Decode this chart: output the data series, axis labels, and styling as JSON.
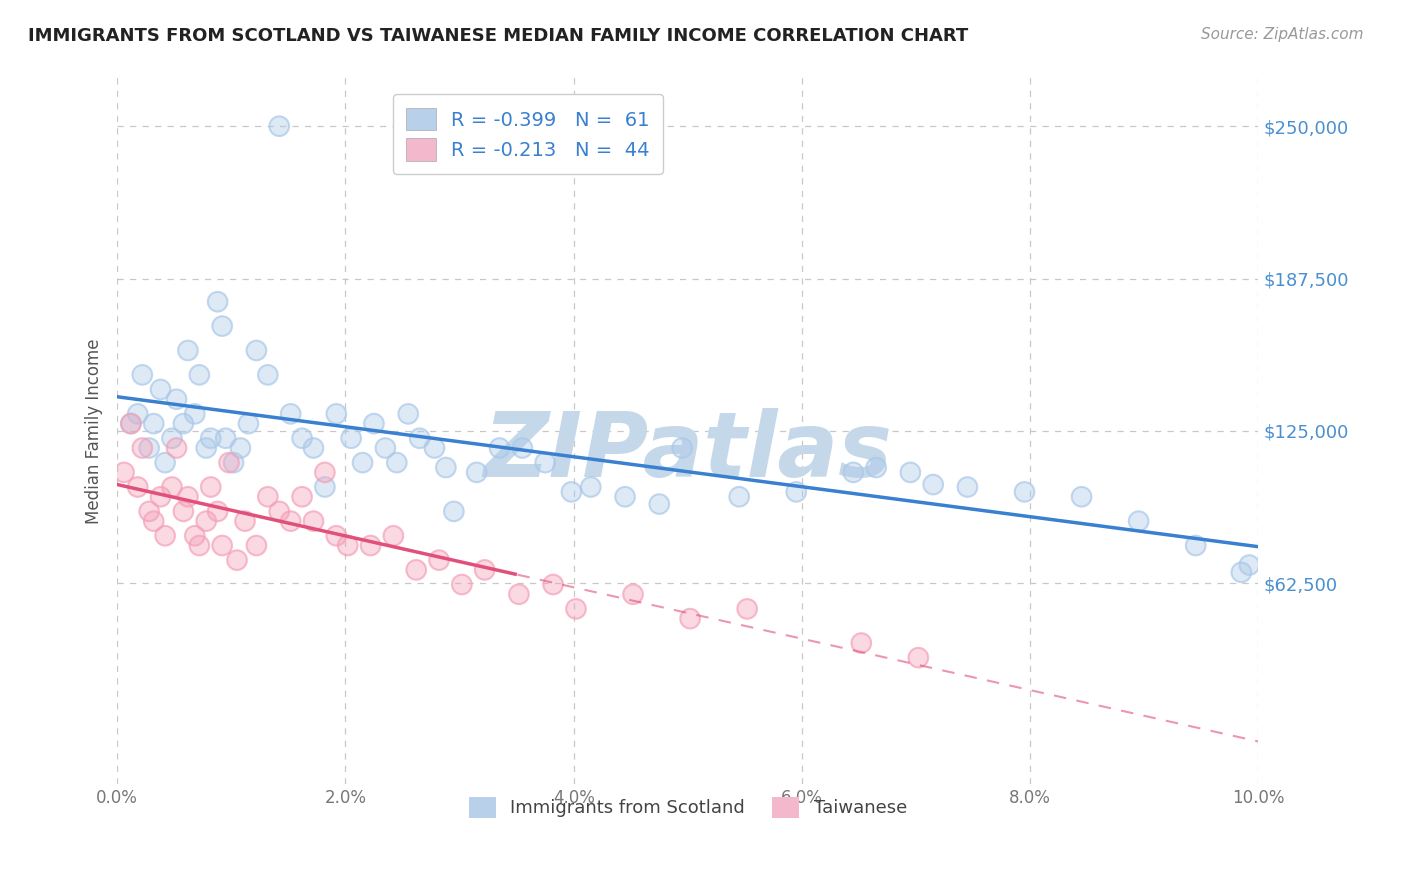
{
  "title": "IMMIGRANTS FROM SCOTLAND VS TAIWANESE MEDIAN FAMILY INCOME CORRELATION CHART",
  "source_text": "Source: ZipAtlas.com",
  "ylabel": "Median Family Income",
  "xlim": [
    0.0,
    10.0
  ],
  "ylim": [
    -20000,
    270000
  ],
  "yticks": [
    62500,
    125000,
    187500,
    250000
  ],
  "ytick_labels": [
    "$62,500",
    "$125,000",
    "$187,500",
    "$250,000"
  ],
  "xticks": [
    0.0,
    2.0,
    4.0,
    6.0,
    8.0,
    10.0
  ],
  "xtick_labels": [
    "0.0%",
    "2.0%",
    "4.0%",
    "6.0%",
    "8.0%",
    "10.0%"
  ],
  "blue_x": [
    0.12,
    0.18,
    0.22,
    0.28,
    0.32,
    0.38,
    0.42,
    0.48,
    0.52,
    0.58,
    0.62,
    0.68,
    0.72,
    0.78,
    0.82,
    0.88,
    0.92,
    0.95,
    1.02,
    1.08,
    1.15,
    1.22,
    1.32,
    1.42,
    1.52,
    1.62,
    1.72,
    1.82,
    1.92,
    2.05,
    2.15,
    2.25,
    2.35,
    2.45,
    2.55,
    2.65,
    2.78,
    2.88,
    2.95,
    3.15,
    3.35,
    3.55,
    3.75,
    4.15,
    4.45,
    4.95,
    5.45,
    6.45,
    6.95,
    7.45,
    7.95,
    8.45,
    8.95,
    9.45,
    9.85,
    9.92,
    3.98,
    4.75,
    5.95,
    6.65,
    7.15
  ],
  "blue_y": [
    128000,
    132000,
    148000,
    118000,
    128000,
    142000,
    112000,
    122000,
    138000,
    128000,
    158000,
    132000,
    148000,
    118000,
    122000,
    178000,
    168000,
    122000,
    112000,
    118000,
    128000,
    158000,
    148000,
    250000,
    132000,
    122000,
    118000,
    102000,
    132000,
    122000,
    112000,
    128000,
    118000,
    112000,
    132000,
    122000,
    118000,
    110000,
    92000,
    108000,
    118000,
    118000,
    112000,
    102000,
    98000,
    118000,
    98000,
    108000,
    108000,
    102000,
    100000,
    98000,
    88000,
    78000,
    67000,
    70000,
    100000,
    95000,
    100000,
    110000,
    103000
  ],
  "pink_x": [
    0.06,
    0.12,
    0.18,
    0.22,
    0.28,
    0.32,
    0.38,
    0.42,
    0.48,
    0.52,
    0.58,
    0.62,
    0.68,
    0.72,
    0.78,
    0.82,
    0.88,
    0.92,
    0.98,
    1.05,
    1.12,
    1.22,
    1.32,
    1.42,
    1.52,
    1.62,
    1.72,
    1.82,
    1.92,
    2.02,
    2.22,
    2.42,
    2.62,
    2.82,
    3.02,
    3.22,
    3.52,
    3.82,
    4.02,
    4.52,
    5.02,
    5.52,
    6.52,
    7.02
  ],
  "pink_y": [
    108000,
    128000,
    102000,
    118000,
    92000,
    88000,
    98000,
    82000,
    102000,
    118000,
    92000,
    98000,
    82000,
    78000,
    88000,
    102000,
    92000,
    78000,
    112000,
    72000,
    88000,
    78000,
    98000,
    92000,
    88000,
    98000,
    88000,
    108000,
    82000,
    78000,
    78000,
    82000,
    68000,
    72000,
    62000,
    68000,
    58000,
    62000,
    52000,
    58000,
    48000,
    52000,
    38000,
    32000
  ],
  "blue_name": "Immigrants from Scotland",
  "blue_R": -0.399,
  "blue_N": 61,
  "pink_name": "Taiwanese",
  "pink_R": -0.213,
  "pink_N": 44,
  "blue_scatter_color": "#aac8e8",
  "blue_line_color": "#3a80d0",
  "blue_legend_color": "#b8d0ea",
  "pink_scatter_color": "#f4a0b8",
  "pink_line_color": "#e0507a",
  "pink_legend_color": "#f4b8cc",
  "watermark_text": "ZIPatlas",
  "watermark_color": "#c5d8ea",
  "background_color": "#ffffff",
  "grid_color": "#c8c8c8",
  "title_color": "#222222",
  "ytick_color": "#4a8fd0",
  "xtick_color": "#777777",
  "axis_label_color": "#555555",
  "r_value_color": "#3a80d0",
  "pink_solid_xmax": 3.5
}
